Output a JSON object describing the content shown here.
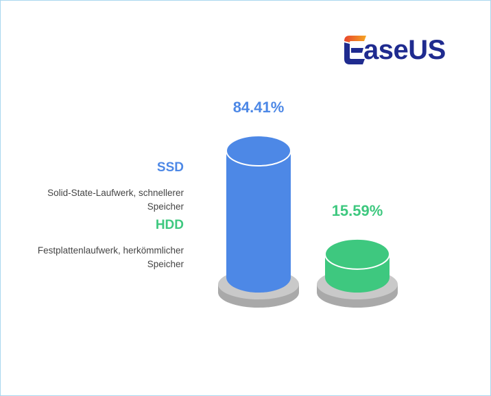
{
  "logo": {
    "text": "aseUS",
    "brand": "EaseUS"
  },
  "colors": {
    "ssd": "#4d88e6",
    "ssd_dark": "#3f74cc",
    "hdd": "#3ec87f",
    "hdd_dark": "#30ad6a",
    "base": "#a9a9a9",
    "base_top": "#c9c9c9"
  },
  "chart_data": {
    "type": "bar",
    "categories": [
      "SSD",
      "HDD"
    ],
    "values": [
      84.41,
      15.59
    ],
    "value_labels": [
      "84.41%",
      "15.59%"
    ],
    "descriptions": [
      "Solid-State-Laufwerk, schnellerer Speicher",
      "Festplattenlaufwerk, herkömmlicher Speicher"
    ],
    "unit": "%"
  },
  "legend": [
    {
      "name": "SSD",
      "desc": "Solid-State-Laufwerk, schnellerer Speicher"
    },
    {
      "name": "HDD",
      "desc": "Festplattenlaufwerk, herkömmlicher Speicher"
    }
  ]
}
